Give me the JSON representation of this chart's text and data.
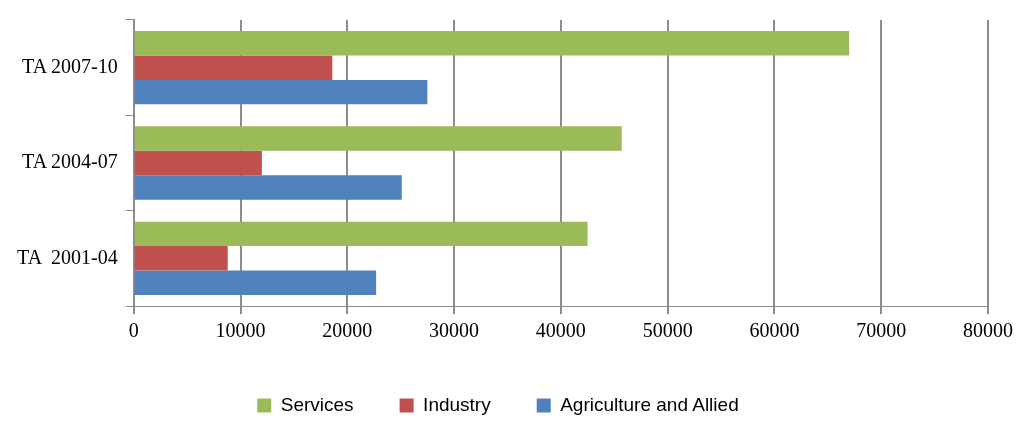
{
  "chart_data": {
    "type": "bar",
    "orientation": "horizontal",
    "categories": [
      "TA 2007-10",
      "TA 2004-07",
      "TA  2001-04"
    ],
    "series": [
      {
        "name": "Services",
        "color": "#9bbb59",
        "values": [
          67000,
          45700,
          42500
        ]
      },
      {
        "name": "Industry",
        "color": "#c0504d",
        "values": [
          18600,
          12000,
          8800
        ]
      },
      {
        "name": "Agriculture and Allied",
        "color": "#4f81bd",
        "values": [
          27500,
          25100,
          22700
        ]
      }
    ],
    "xlim": [
      0,
      80000
    ],
    "xticks": [
      0,
      10000,
      20000,
      30000,
      40000,
      50000,
      60000,
      70000,
      80000
    ],
    "grid": "x",
    "legend": "bottom"
  }
}
